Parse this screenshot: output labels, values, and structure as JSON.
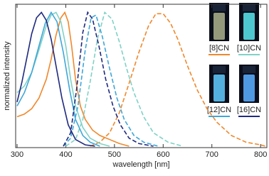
{
  "chart_data": {
    "type": "line",
    "x_label": "wavelength [nm]",
    "y_label": "normalized intensity",
    "xlim": [
      300,
      810
    ],
    "ylim": [
      0,
      1.05
    ],
    "xticks": [
      300,
      400,
      500,
      600,
      700,
      800
    ],
    "series": [
      {
        "name": "[8]CN",
        "color": "#f0882c",
        "absorption": {
          "x": [
            300,
            315,
            330,
            345,
            360,
            370,
            380,
            390,
            398,
            405,
            412,
            420,
            430,
            440,
            455,
            470,
            490,
            510,
            530
          ],
          "values": [
            0.22,
            0.24,
            0.28,
            0.36,
            0.5,
            0.65,
            0.83,
            0.96,
            1.0,
            0.93,
            0.75,
            0.5,
            0.3,
            0.2,
            0.12,
            0.08,
            0.05,
            0.02,
            0
          ]
        },
        "emission": {
          "x": [
            450,
            470,
            490,
            510,
            530,
            550,
            570,
            585,
            600,
            615,
            630,
            650,
            670,
            690,
            710,
            740,
            770,
            800,
            810
          ],
          "values": [
            0,
            0.03,
            0.1,
            0.25,
            0.47,
            0.7,
            0.9,
            0.99,
            0.99,
            0.92,
            0.8,
            0.6,
            0.42,
            0.28,
            0.18,
            0.08,
            0.03,
            0.01,
            0
          ]
        }
      },
      {
        "name": "[10]CN",
        "color": "#80d2c6",
        "absorption": {
          "x": [
            300,
            315,
            330,
            345,
            360,
            370,
            380,
            390,
            400,
            410,
            420,
            435,
            450,
            470,
            490
          ],
          "values": [
            0.4,
            0.45,
            0.55,
            0.72,
            0.9,
            0.98,
            1.0,
            0.93,
            0.75,
            0.5,
            0.3,
            0.14,
            0.06,
            0.02,
            0
          ]
        },
        "emission": {
          "x": [
            400,
            420,
            435,
            450,
            465,
            480,
            495,
            510,
            525,
            540,
            560,
            580,
            610,
            640
          ],
          "values": [
            0,
            0.05,
            0.2,
            0.48,
            0.8,
            1.0,
            0.95,
            0.78,
            0.58,
            0.4,
            0.22,
            0.1,
            0.03,
            0
          ]
        }
      },
      {
        "name": "[12]CN",
        "color": "#3fa6d8",
        "absorption": {
          "x": [
            300,
            315,
            330,
            345,
            358,
            370,
            382,
            395,
            408,
            420,
            435,
            450,
            470
          ],
          "values": [
            0.3,
            0.4,
            0.55,
            0.75,
            0.92,
            1.0,
            0.93,
            0.7,
            0.42,
            0.2,
            0.08,
            0.03,
            0
          ]
        },
        "emission": {
          "x": [
            395,
            410,
            425,
            440,
            452,
            462,
            475,
            490,
            505,
            520,
            540,
            560,
            590
          ],
          "values": [
            0,
            0.06,
            0.3,
            0.72,
            0.96,
            0.98,
            0.82,
            0.58,
            0.36,
            0.2,
            0.08,
            0.03,
            0
          ]
        }
      },
      {
        "name": "[16]CN",
        "color": "#1e2a80",
        "absorption": {
          "x": [
            300,
            310,
            320,
            330,
            340,
            350,
            360,
            370,
            380,
            392,
            405,
            420,
            440,
            460
          ],
          "values": [
            0.33,
            0.48,
            0.66,
            0.84,
            0.96,
            1.0,
            0.94,
            0.8,
            0.6,
            0.36,
            0.16,
            0.05,
            0.01,
            0
          ]
        },
        "emission": {
          "x": [
            395,
            410,
            422,
            435,
            445,
            455,
            468,
            482,
            497,
            512,
            530,
            550,
            580
          ],
          "values": [
            0,
            0.1,
            0.42,
            0.85,
            1.0,
            0.95,
            0.75,
            0.5,
            0.3,
            0.16,
            0.06,
            0.02,
            0
          ]
        }
      }
    ]
  }
}
